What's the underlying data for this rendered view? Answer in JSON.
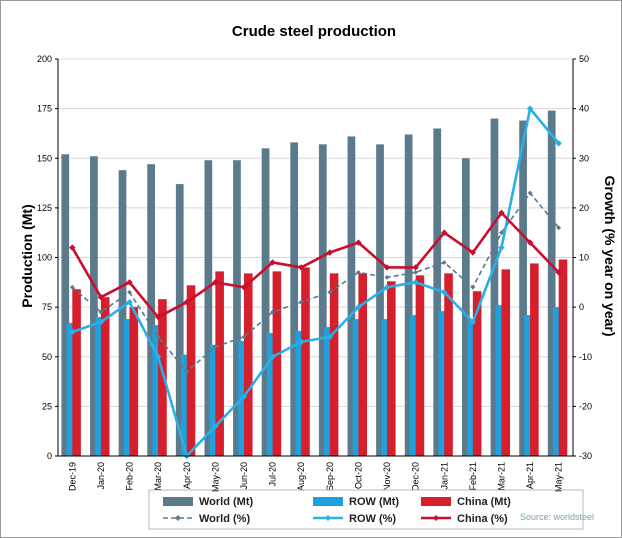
{
  "chart_data": {
    "type": "bar",
    "title": "Crude steel production",
    "ylabel": "Production (Mt)",
    "y2label": "Growth (% year on year)",
    "ylim": [
      0,
      200
    ],
    "y2lim": [
      -30,
      50
    ],
    "yticks": [
      "0",
      "25",
      "50",
      "75",
      "100",
      "125",
      "150",
      "175",
      "200"
    ],
    "y2ticks": [
      "-30",
      "-20",
      "-10",
      "0",
      "10",
      "20",
      "30",
      "40",
      "50"
    ],
    "categories": [
      "Dec-19",
      "Jan-20",
      "Feb-20",
      "Mar-20",
      "Apr-20",
      "May-20",
      "Jun-20",
      "Jul-20",
      "Aug-20",
      "Sep-20",
      "Oct-20",
      "Nov-20",
      "Dec-20",
      "Jan-21",
      "Feb-21",
      "Mar-21",
      "Apr-21",
      "May-21"
    ],
    "bar_series": [
      {
        "name": "World (Mt)",
        "color": "#5b7a8c",
        "values": [
          152,
          151,
          144,
          147,
          137,
          149,
          149,
          155,
          158,
          157,
          161,
          157,
          162,
          165,
          150,
          170,
          169,
          174
        ]
      },
      {
        "name": "ROW (Mt)",
        "color": "#1fa1dd",
        "values": [
          67,
          70,
          69,
          66,
          51,
          56,
          58,
          62,
          63,
          65,
          69,
          69,
          71,
          73,
          68,
          76,
          71,
          75
        ]
      },
      {
        "name": "China (Mt)",
        "color": "#d61f2c",
        "values": [
          84,
          80,
          75,
          79,
          86,
          93,
          92,
          93,
          95,
          92,
          92,
          88,
          91,
          92,
          83,
          94,
          97,
          99
        ]
      }
    ],
    "line_series": [
      {
        "name": "World (%)",
        "color": "#5b7a8c",
        "values": [
          4,
          -1,
          3,
          -6,
          -13,
          -8,
          -6,
          -1,
          1,
          3,
          7,
          6,
          7,
          9,
          4,
          15,
          23,
          16
        ]
      },
      {
        "name": "ROW (%)",
        "color": "#2bb0e6",
        "values": [
          -5,
          -3,
          1,
          -10,
          -30,
          -24,
          -18,
          -10,
          -7,
          -6,
          0,
          4,
          5,
          3,
          -3,
          12,
          40,
          33
        ]
      },
      {
        "name": "China (%)",
        "color": "#c8102e",
        "values": [
          12,
          2,
          5,
          -2,
          1,
          5,
          4,
          9,
          8,
          11,
          13,
          8,
          8,
          15,
          11,
          19,
          13,
          7
        ]
      }
    ],
    "legend_position": "bottom",
    "source": "Source: worldsteel"
  }
}
